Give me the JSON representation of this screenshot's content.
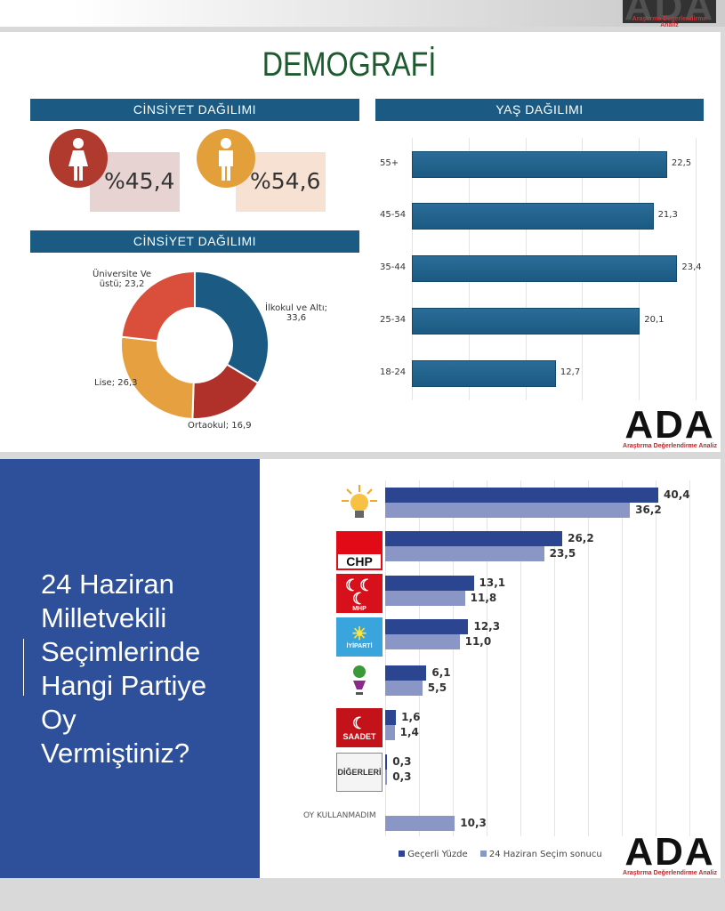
{
  "header": {
    "logo": "ADA",
    "logo_sub": "Araştırma Değerlendirme Analiz"
  },
  "title": "DEMOGRAFİ",
  "gender": {
    "heading": "CİNSİYET DAĞILIMI",
    "female": "%45,4",
    "male": "%54,6",
    "female_color": "#b03a2e",
    "male_color": "#e3a03a"
  },
  "chart_data": [
    {
      "type": "pie",
      "title": "CİNSİYET DAĞILIMI",
      "donut": true,
      "slices": [
        {
          "label": "İlkokul ve Altı",
          "value": 33.6,
          "text": "İlkokul ve Altı;",
          "vtext": "33,6",
          "color": "#1b5a82"
        },
        {
          "label": "Ortaokul",
          "value": 16.9,
          "text": "Ortaokul; 16,9",
          "color": "#b0302a"
        },
        {
          "label": "Lise",
          "value": 26.3,
          "text": "Lise; 26,3",
          "color": "#e6a040"
        },
        {
          "label": "Üniversite Ve üstü",
          "value": 23.2,
          "text": "Üniversite Ve",
          "vtext": "üstü; 23,2",
          "color": "#d94f3c"
        }
      ]
    },
    {
      "type": "bar",
      "orientation": "horizontal",
      "title": "YAŞ DAĞILIMI",
      "xlim": [
        0,
        25
      ],
      "grid": true,
      "categories": [
        "55+",
        "45-54",
        "35-44",
        "25-34",
        "18-24"
      ],
      "values": [
        22.5,
        21.3,
        23.4,
        20.1,
        12.7
      ],
      "labels": [
        "22,5",
        "21,3",
        "23,4",
        "20,1",
        "12,7"
      ],
      "color": "#1b5a82"
    },
    {
      "type": "bar",
      "orientation": "horizontal",
      "xlim": [
        0,
        45
      ],
      "grid": true,
      "legend": "bottom",
      "categories": [
        "AK Parti",
        "CHP",
        "MHP",
        "İYİ Parti",
        "HDP",
        "SAADET",
        "DİĞERLERİ",
        "OY KULLANMADIM"
      ],
      "series": [
        {
          "name": "Geçerli Yüzde",
          "color": "#2b4590",
          "values": [
            40.4,
            26.2,
            13.1,
            12.3,
            6.1,
            1.6,
            0.3,
            null
          ],
          "labels": [
            "40,4",
            "26,2",
            "13,1",
            "12,3",
            "6,1",
            "1,6",
            "0,3",
            ""
          ]
        },
        {
          "name": "24 Haziran Seçim sonucu",
          "color": "#8a97c6",
          "values": [
            36.2,
            23.5,
            11.8,
            11.0,
            5.5,
            1.4,
            0.3,
            10.3
          ],
          "labels": [
            "36,2",
            "23,5",
            "11,8",
            "11,0",
            "5,5",
            "1,4",
            "0,3",
            "10,3"
          ]
        }
      ]
    }
  ],
  "party_logos": {
    "chp": "CHP",
    "mhp": "MHP",
    "iyi": "İYİPARTİ",
    "saadet": "SAADET",
    "diger": "DİĞERLERİ",
    "oy": "OY KULLANMADIM"
  },
  "question": [
    "24 Haziran",
    "Milletvekili",
    "Seçimlerinde",
    "Hangi Partiye",
    "Oy",
    "Vermiştiniz?"
  ]
}
